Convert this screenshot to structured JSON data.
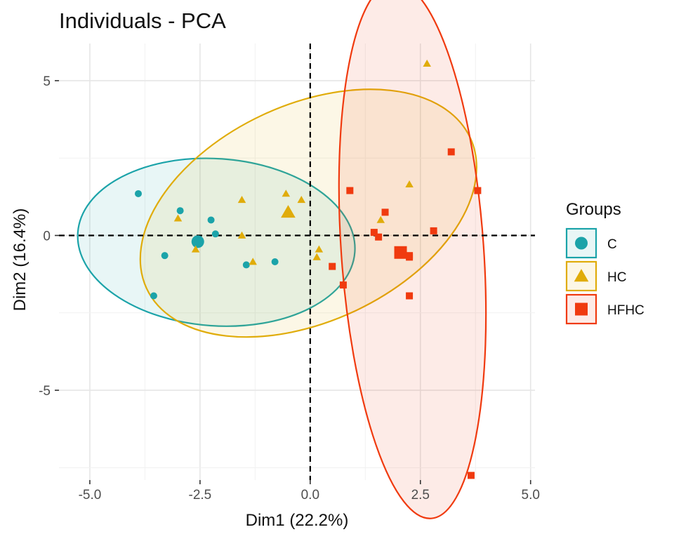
{
  "chart_data": {
    "type": "scatter",
    "title": "Individuals - PCA",
    "xlabel": "Dim1 (22.2%)",
    "ylabel": "Dim2 (16.4%)",
    "xlim": [
      -5.7,
      5.1
    ],
    "ylim": [
      -7.9,
      6.2
    ],
    "x_ticks": [
      -5.0,
      -2.5,
      0.0,
      2.5,
      5.0
    ],
    "x_tick_labels": [
      "-5.0",
      "-2.5",
      "0.0",
      "2.5",
      "5.0"
    ],
    "y_ticks": [
      -5,
      0,
      5
    ],
    "y_tick_labels": [
      "-5",
      "0",
      "5"
    ],
    "grid": true,
    "reference_lines": {
      "x": 0,
      "y": 0,
      "style": "dashed"
    },
    "legend": {
      "title": "Groups",
      "position": "right"
    },
    "series": [
      {
        "name": "C",
        "color": "#1BA3A9",
        "marker": "circle",
        "points": [
          {
            "x": -3.9,
            "y": 1.35
          },
          {
            "x": -2.95,
            "y": 0.8
          },
          {
            "x": -2.25,
            "y": 0.5
          },
          {
            "x": -2.15,
            "y": 0.05
          },
          {
            "x": -3.3,
            "y": -0.65
          },
          {
            "x": -3.55,
            "y": -1.95
          },
          {
            "x": -1.45,
            "y": -0.95
          },
          {
            "x": -0.8,
            "y": -0.85
          }
        ],
        "center": {
          "x": -2.55,
          "y": -0.2
        },
        "ellipse": {
          "cx": -2.13,
          "cy": -0.22,
          "rx": 3.15,
          "ry": 2.7,
          "angle_deg": -4
        }
      },
      {
        "name": "HC",
        "color": "#E0AC0A",
        "marker": "triangle",
        "points": [
          {
            "x": 2.65,
            "y": 5.55
          },
          {
            "x": -3.0,
            "y": 0.55
          },
          {
            "x": -1.55,
            "y": 1.15
          },
          {
            "x": -0.55,
            "y": 1.35
          },
          {
            "x": -0.2,
            "y": 1.15
          },
          {
            "x": -2.6,
            "y": -0.45
          },
          {
            "x": -1.55,
            "y": 0.0
          },
          {
            "x": -1.3,
            "y": -0.85
          },
          {
            "x": 0.2,
            "y": -0.45
          },
          {
            "x": 0.15,
            "y": -0.7
          },
          {
            "x": 1.6,
            "y": 0.5
          },
          {
            "x": 2.25,
            "y": 1.65
          }
        ],
        "center": {
          "x": -0.5,
          "y": 0.75
        },
        "ellipse": {
          "cx": -0.04,
          "cy": 0.72,
          "rx": 4.05,
          "ry": 3.5,
          "angle_deg": 25
        }
      },
      {
        "name": "HFHC",
        "color": "#F03A0F",
        "marker": "square",
        "points": [
          {
            "x": 3.2,
            "y": 2.7
          },
          {
            "x": 0.9,
            "y": 1.45
          },
          {
            "x": 3.8,
            "y": 1.45
          },
          {
            "x": 1.7,
            "y": 0.75
          },
          {
            "x": 1.45,
            "y": 0.1
          },
          {
            "x": 1.55,
            "y": -0.05
          },
          {
            "x": 2.8,
            "y": 0.15
          },
          {
            "x": 2.25,
            "y": -0.65
          },
          {
            "x": 2.25,
            "y": -0.7
          },
          {
            "x": 0.5,
            "y": -1.0
          },
          {
            "x": 0.75,
            "y": -1.6
          },
          {
            "x": 2.25,
            "y": -1.95
          },
          {
            "x": 3.65,
            "y": -7.75
          }
        ],
        "center": {
          "x": 2.05,
          "y": -0.55
        },
        "ellipse": {
          "cx": 2.32,
          "cy": -0.48,
          "rx": 6.1,
          "ry": 2.3,
          "angle_deg": 94
        }
      }
    ]
  }
}
